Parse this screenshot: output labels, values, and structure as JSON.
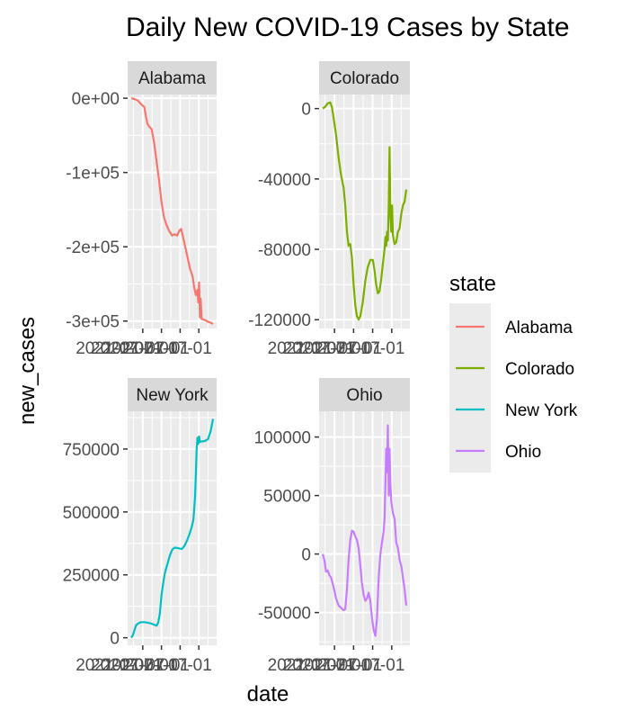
{
  "chart_data": {
    "type": "line",
    "title": "Daily New COVID-19 Cases by State",
    "xlabel": "date",
    "ylabel": "new_cases",
    "x_tick_label": "2021-07-01",
    "legend": {
      "title": "state",
      "placement": "right",
      "entries": [
        {
          "name": "Alabama",
          "color": "#F8766D"
        },
        {
          "name": "Colorado",
          "color": "#7CAE00"
        },
        {
          "name": "New York",
          "color": "#00BFC4"
        },
        {
          "name": "Ohio",
          "color": "#C77CFF"
        }
      ]
    },
    "facets": [
      {
        "state": "Alabama",
        "color": "#F8766D",
        "ylim": [
          -310000,
          5000
        ],
        "yticks": [
          {
            "value": 0,
            "label": "0e+00"
          },
          {
            "value": -100000,
            "label": "-1e+05"
          },
          {
            "value": -200000,
            "label": "-2e+05"
          },
          {
            "value": -300000,
            "label": "-3e+05"
          }
        ],
        "points": [
          {
            "t": 0.0,
            "y": 0
          },
          {
            "t": 0.04,
            "y": -1000
          },
          {
            "t": 0.08,
            "y": -3000
          },
          {
            "t": 0.12,
            "y": -8000
          },
          {
            "t": 0.16,
            "y": -12000
          },
          {
            "t": 0.18,
            "y": -25000
          },
          {
            "t": 0.2,
            "y": -35000
          },
          {
            "t": 0.22,
            "y": -38000
          },
          {
            "t": 0.25,
            "y": -42000
          },
          {
            "t": 0.28,
            "y": -60000
          },
          {
            "t": 0.31,
            "y": -85000
          },
          {
            "t": 0.34,
            "y": -110000
          },
          {
            "t": 0.37,
            "y": -140000
          },
          {
            "t": 0.4,
            "y": -160000
          },
          {
            "t": 0.43,
            "y": -170000
          },
          {
            "t": 0.46,
            "y": -178000
          },
          {
            "t": 0.5,
            "y": -185000
          },
          {
            "t": 0.53,
            "y": -183000
          },
          {
            "t": 0.56,
            "y": -185000
          },
          {
            "t": 0.59,
            "y": -178000
          },
          {
            "t": 0.61,
            "y": -176000
          },
          {
            "t": 0.63,
            "y": -185000
          },
          {
            "t": 0.66,
            "y": -200000
          },
          {
            "t": 0.69,
            "y": -215000
          },
          {
            "t": 0.72,
            "y": -230000
          },
          {
            "t": 0.75,
            "y": -240000
          },
          {
            "t": 0.77,
            "y": -255000
          },
          {
            "t": 0.79,
            "y": -265000
          },
          {
            "t": 0.81,
            "y": -258000
          },
          {
            "t": 0.82,
            "y": -275000
          },
          {
            "t": 0.83,
            "y": -248000
          },
          {
            "t": 0.84,
            "y": -295000
          },
          {
            "t": 0.85,
            "y": -270000
          },
          {
            "t": 0.86,
            "y": -297000
          },
          {
            "t": 0.88,
            "y": -298000
          },
          {
            "t": 0.91,
            "y": -299000
          },
          {
            "t": 0.94,
            "y": -301000
          },
          {
            "t": 0.97,
            "y": -302000
          },
          {
            "t": 1.0,
            "y": -304000
          }
        ]
      },
      {
        "state": "Colorado",
        "color": "#7CAE00",
        "ylim": [
          -125000,
          8000
        ],
        "yticks": [
          {
            "value": 0,
            "label": "0"
          },
          {
            "value": -40000,
            "label": "-40000"
          },
          {
            "value": -80000,
            "label": "-80000"
          },
          {
            "value": -120000,
            "label": "-120000"
          }
        ],
        "points": [
          {
            "t": 0.0,
            "y": 0
          },
          {
            "t": 0.03,
            "y": 1000
          },
          {
            "t": 0.06,
            "y": 3000
          },
          {
            "t": 0.09,
            "y": 3500
          },
          {
            "t": 0.11,
            "y": 1000
          },
          {
            "t": 0.13,
            "y": -5000
          },
          {
            "t": 0.16,
            "y": -15000
          },
          {
            "t": 0.19,
            "y": -28000
          },
          {
            "t": 0.22,
            "y": -38000
          },
          {
            "t": 0.25,
            "y": -45000
          },
          {
            "t": 0.27,
            "y": -55000
          },
          {
            "t": 0.29,
            "y": -70000
          },
          {
            "t": 0.31,
            "y": -78000
          },
          {
            "t": 0.33,
            "y": -77000
          },
          {
            "t": 0.35,
            "y": -85000
          },
          {
            "t": 0.37,
            "y": -100000
          },
          {
            "t": 0.39,
            "y": -112000
          },
          {
            "t": 0.41,
            "y": -118000
          },
          {
            "t": 0.43,
            "y": -120000
          },
          {
            "t": 0.45,
            "y": -118000
          },
          {
            "t": 0.48,
            "y": -110000
          },
          {
            "t": 0.51,
            "y": -98000
          },
          {
            "t": 0.54,
            "y": -90000
          },
          {
            "t": 0.57,
            "y": -86000
          },
          {
            "t": 0.6,
            "y": -86000
          },
          {
            "t": 0.62,
            "y": -92000
          },
          {
            "t": 0.64,
            "y": -100000
          },
          {
            "t": 0.66,
            "y": -105000
          },
          {
            "t": 0.68,
            "y": -104000
          },
          {
            "t": 0.7,
            "y": -97000
          },
          {
            "t": 0.72,
            "y": -88000
          },
          {
            "t": 0.74,
            "y": -80000
          },
          {
            "t": 0.75,
            "y": -73000
          },
          {
            "t": 0.76,
            "y": -78000
          },
          {
            "t": 0.77,
            "y": -70000
          },
          {
            "t": 0.78,
            "y": -75000
          },
          {
            "t": 0.79,
            "y": -55000
          },
          {
            "t": 0.8,
            "y": -22000
          },
          {
            "t": 0.81,
            "y": -60000
          },
          {
            "t": 0.82,
            "y": -70000
          },
          {
            "t": 0.83,
            "y": -55000
          },
          {
            "t": 0.84,
            "y": -72000
          },
          {
            "t": 0.86,
            "y": -77000
          },
          {
            "t": 0.88,
            "y": -76000
          },
          {
            "t": 0.9,
            "y": -70000
          },
          {
            "t": 0.92,
            "y": -68000
          },
          {
            "t": 0.94,
            "y": -60000
          },
          {
            "t": 0.96,
            "y": -55000
          },
          {
            "t": 0.98,
            "y": -53000
          },
          {
            "t": 1.0,
            "y": -46000
          }
        ]
      },
      {
        "state": "New York",
        "color": "#00BFC4",
        "ylim": [
          -30000,
          900000
        ],
        "yticks": [
          {
            "value": 0,
            "label": "0"
          },
          {
            "value": 250000,
            "label": "250000"
          },
          {
            "value": 500000,
            "label": "500000"
          },
          {
            "value": 750000,
            "label": "750000"
          }
        ],
        "points": [
          {
            "t": 0.0,
            "y": 0
          },
          {
            "t": 0.02,
            "y": 10000
          },
          {
            "t": 0.04,
            "y": 30000
          },
          {
            "t": 0.06,
            "y": 50000
          },
          {
            "t": 0.09,
            "y": 58000
          },
          {
            "t": 0.12,
            "y": 62000
          },
          {
            "t": 0.16,
            "y": 62000
          },
          {
            "t": 0.2,
            "y": 60000
          },
          {
            "t": 0.24,
            "y": 57000
          },
          {
            "t": 0.28,
            "y": 52000
          },
          {
            "t": 0.31,
            "y": 48000
          },
          {
            "t": 0.33,
            "y": 60000
          },
          {
            "t": 0.35,
            "y": 95000
          },
          {
            "t": 0.37,
            "y": 170000
          },
          {
            "t": 0.39,
            "y": 215000
          },
          {
            "t": 0.41,
            "y": 255000
          },
          {
            "t": 0.44,
            "y": 290000
          },
          {
            "t": 0.47,
            "y": 325000
          },
          {
            "t": 0.5,
            "y": 350000
          },
          {
            "t": 0.53,
            "y": 358000
          },
          {
            "t": 0.56,
            "y": 357000
          },
          {
            "t": 0.59,
            "y": 355000
          },
          {
            "t": 0.62,
            "y": 353000
          },
          {
            "t": 0.65,
            "y": 365000
          },
          {
            "t": 0.68,
            "y": 385000
          },
          {
            "t": 0.71,
            "y": 410000
          },
          {
            "t": 0.74,
            "y": 440000
          },
          {
            "t": 0.76,
            "y": 470000
          },
          {
            "t": 0.78,
            "y": 560000
          },
          {
            "t": 0.79,
            "y": 650000
          },
          {
            "t": 0.8,
            "y": 750000
          },
          {
            "t": 0.81,
            "y": 795000
          },
          {
            "t": 0.82,
            "y": 770000
          },
          {
            "t": 0.83,
            "y": 800000
          },
          {
            "t": 0.84,
            "y": 778000
          },
          {
            "t": 0.86,
            "y": 780000
          },
          {
            "t": 0.9,
            "y": 782000
          },
          {
            "t": 0.94,
            "y": 790000
          },
          {
            "t": 0.97,
            "y": 820000
          },
          {
            "t": 1.0,
            "y": 870000
          }
        ]
      },
      {
        "state": "Ohio",
        "color": "#C77CFF",
        "ylim": [
          -78000,
          122000
        ],
        "yticks": [
          {
            "value": 100000,
            "label": "100000"
          },
          {
            "value": 50000,
            "label": "50000"
          },
          {
            "value": 0,
            "label": "0"
          },
          {
            "value": -50000,
            "label": "-50000"
          }
        ],
        "points": [
          {
            "t": 0.0,
            "y": 0
          },
          {
            "t": 0.02,
            "y": -5000
          },
          {
            "t": 0.04,
            "y": -15000
          },
          {
            "t": 0.06,
            "y": -14000
          },
          {
            "t": 0.08,
            "y": -18000
          },
          {
            "t": 0.1,
            "y": -20000
          },
          {
            "t": 0.13,
            "y": -28000
          },
          {
            "t": 0.16,
            "y": -38000
          },
          {
            "t": 0.19,
            "y": -44000
          },
          {
            "t": 0.22,
            "y": -46000
          },
          {
            "t": 0.25,
            "y": -48000
          },
          {
            "t": 0.27,
            "y": -47000
          },
          {
            "t": 0.29,
            "y": -30000
          },
          {
            "t": 0.31,
            "y": -5000
          },
          {
            "t": 0.33,
            "y": 12000
          },
          {
            "t": 0.35,
            "y": 20000
          },
          {
            "t": 0.37,
            "y": 19000
          },
          {
            "t": 0.39,
            "y": 15000
          },
          {
            "t": 0.41,
            "y": 12000
          },
          {
            "t": 0.43,
            "y": 5000
          },
          {
            "t": 0.45,
            "y": -10000
          },
          {
            "t": 0.47,
            "y": -25000
          },
          {
            "t": 0.49,
            "y": -35000
          },
          {
            "t": 0.51,
            "y": -40000
          },
          {
            "t": 0.53,
            "y": -38000
          },
          {
            "t": 0.55,
            "y": -33000
          },
          {
            "t": 0.57,
            "y": -40000
          },
          {
            "t": 0.59,
            "y": -55000
          },
          {
            "t": 0.61,
            "y": -65000
          },
          {
            "t": 0.63,
            "y": -70000
          },
          {
            "t": 0.65,
            "y": -55000
          },
          {
            "t": 0.67,
            "y": -20000
          },
          {
            "t": 0.69,
            "y": 0
          },
          {
            "t": 0.71,
            "y": 10000
          },
          {
            "t": 0.73,
            "y": 20000
          },
          {
            "t": 0.74,
            "y": 30000
          },
          {
            "t": 0.75,
            "y": 60000
          },
          {
            "t": 0.76,
            "y": 90000
          },
          {
            "t": 0.77,
            "y": 70000
          },
          {
            "t": 0.78,
            "y": 110000
          },
          {
            "t": 0.79,
            "y": 50000
          },
          {
            "t": 0.8,
            "y": 90000
          },
          {
            "t": 0.81,
            "y": 60000
          },
          {
            "t": 0.82,
            "y": 45000
          },
          {
            "t": 0.84,
            "y": 35000
          },
          {
            "t": 0.86,
            "y": 30000
          },
          {
            "t": 0.88,
            "y": 10000
          },
          {
            "t": 0.9,
            "y": 5000
          },
          {
            "t": 0.92,
            "y": -5000
          },
          {
            "t": 0.94,
            "y": -10000
          },
          {
            "t": 0.96,
            "y": -20000
          },
          {
            "t": 0.98,
            "y": -30000
          },
          {
            "t": 1.0,
            "y": -44000
          }
        ]
      }
    ]
  }
}
